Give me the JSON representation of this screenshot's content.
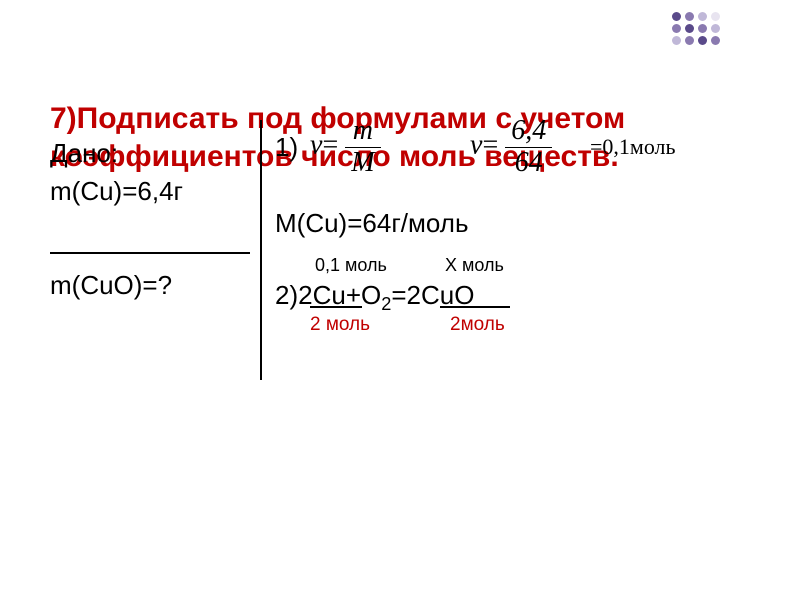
{
  "title": "7)Подписать под формулами с учетом коэффициентов число моль веществ.",
  "given_label": "Дано:",
  "given_mass": "m(Cu)=6,4г",
  "find": "m(CuO)=?",
  "step1_num": "1)",
  "nu_symbol": "ν",
  "frac1_top": "m",
  "frac1_bot": "M",
  "frac2_top": "6,4",
  "frac2_bot": "64",
  "eq_result": "=0,1моль",
  "molar_mass": "M(Cu)=64г/моль",
  "above_cu": "0,1 моль",
  "above_cuo": "Х моль",
  "step2_prefix": "2)",
  "eqn_cu": "2Cu",
  "eqn_plus": "+O",
  "eqn_o2sub": "2",
  "eqn_eq": "=2CuO",
  "below_cu": "2 моль",
  "below_cuo": "2моль",
  "colors": {
    "title": "#c00000",
    "red_text": "#c00000",
    "text": "#000000",
    "bg": "#ffffff"
  }
}
